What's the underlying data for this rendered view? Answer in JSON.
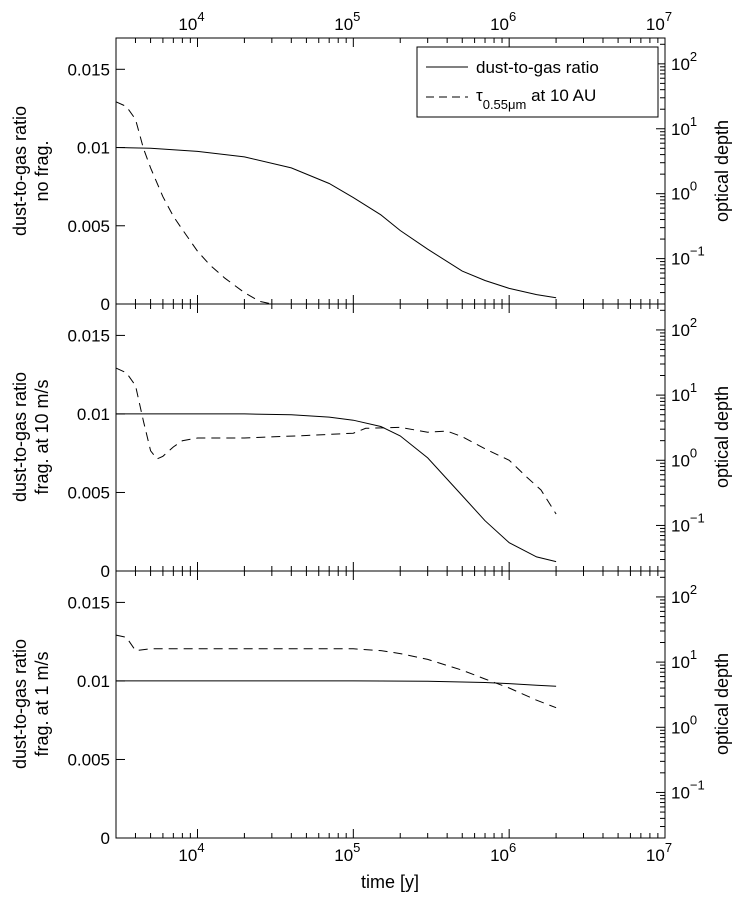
{
  "chart_data": {
    "type": "line",
    "xlabel": "time [y]",
    "xscale": "log",
    "xlim": [
      3000,
      10000000
    ],
    "x_tick_labels": [
      {
        "base": "10",
        "exp": "4",
        "value": 10000
      },
      {
        "base": "10",
        "exp": "5",
        "value": 100000
      },
      {
        "base": "10",
        "exp": "6",
        "value": 1000000
      },
      {
        "base": "10",
        "exp": "7",
        "value": 10000000
      }
    ],
    "left_ylim": [
      0,
      0.017
    ],
    "left_y_ticks": [
      {
        "label": "0",
        "value": 0
      },
      {
        "label": "0.005",
        "value": 0.005
      },
      {
        "label": "0.01",
        "value": 0.01
      },
      {
        "label": "0.015",
        "value": 0.015
      }
    ],
    "right_ylabel": "optical depth",
    "right_yscale": "log",
    "right_ylim": [
      0.02,
      250
    ],
    "right_y_ticks": [
      {
        "base": "10",
        "exp": "−1",
        "value": 0.1
      },
      {
        "base": "10",
        "exp": "0",
        "value": 1
      },
      {
        "base": "10",
        "exp": "1",
        "value": 10
      },
      {
        "base": "10",
        "exp": "2",
        "value": 100
      }
    ],
    "legend": {
      "placement": "top-right",
      "entries": [
        {
          "style": "solid",
          "label": "dust-to-gas ratio"
        },
        {
          "style": "dashed",
          "symbol": "τ",
          "subscript": "0.55μm",
          "suffix": " at 10 AU"
        }
      ]
    },
    "panels": [
      {
        "ylabel_line1": "dust-to-gas ratio",
        "ylabel_line2": "no frag.",
        "series": [
          {
            "name": "dust-to-gas ratio",
            "style": "solid",
            "axis": "left",
            "x": [
              3000,
              5000,
              10000,
              20000,
              40000,
              70000,
              100000,
              150000,
              200000,
              300000,
              500000,
              700000,
              1000000,
              1500000,
              2000000
            ],
            "y": [
              0.01,
              0.00995,
              0.00975,
              0.0094,
              0.0087,
              0.0077,
              0.0068,
              0.0057,
              0.0047,
              0.0035,
              0.0021,
              0.0015,
              0.001,
              0.0006,
              0.0004
            ]
          },
          {
            "name": "τ0.55μm at 10 AU",
            "style": "dashed",
            "axis": "right",
            "x": [
              3000,
              3500,
              4000,
              4500,
              5000,
              6000,
              7000,
              8000,
              10000,
              12000,
              15000,
              20000,
              25000,
              30000
            ],
            "y": [
              26,
              22,
              14,
              5,
              2.5,
              0.9,
              0.45,
              0.28,
              0.13,
              0.08,
              0.05,
              0.03,
              0.022,
              0.018
            ]
          }
        ]
      },
      {
        "ylabel_line1": "dust-to-gas ratio",
        "ylabel_line2": "frag. at 10 m/s",
        "series": [
          {
            "name": "dust-to-gas ratio",
            "style": "solid",
            "axis": "left",
            "x": [
              3000,
              5000,
              10000,
              20000,
              40000,
              70000,
              100000,
              150000,
              200000,
              300000,
              500000,
              700000,
              1000000,
              1500000,
              2000000
            ],
            "y": [
              0.01,
              0.01,
              0.01,
              0.01,
              0.00995,
              0.0098,
              0.0096,
              0.0092,
              0.0086,
              0.0072,
              0.0048,
              0.0032,
              0.0018,
              0.0009,
              0.0006
            ]
          },
          {
            "name": "τ0.55μm at 10 AU",
            "style": "dashed",
            "axis": "right",
            "x": [
              3000,
              3500,
              4000,
              4500,
              5000,
              5500,
              6000,
              7000,
              8000,
              10000,
              20000,
              50000,
              100000,
              120000,
              200000,
              300000,
              400000,
              500000,
              700000,
              1000000,
              1300000,
              1600000,
              2000000
            ],
            "y": [
              26,
              22,
              14,
              4,
              1.4,
              1.05,
              1.15,
              1.6,
              2.0,
              2.2,
              2.2,
              2.4,
              2.6,
              3.1,
              3.2,
              2.7,
              2.8,
              2.3,
              1.5,
              1.0,
              0.55,
              0.35,
              0.15
            ]
          }
        ]
      },
      {
        "ylabel_line1": "dust-to-gas ratio",
        "ylabel_line2": "frag. at 1 m/s",
        "series": [
          {
            "name": "dust-to-gas ratio",
            "style": "solid",
            "axis": "left",
            "x": [
              3000,
              10000,
              100000,
              300000,
              700000,
              1000000,
              1500000,
              2000000
            ],
            "y": [
              0.01,
              0.01,
              0.01,
              0.00998,
              0.0099,
              0.00983,
              0.00973,
              0.00966
            ]
          },
          {
            "name": "τ0.55μm at 10 AU",
            "style": "dashed",
            "axis": "right",
            "x": [
              3000,
              3500,
              4000,
              5000,
              10000,
              50000,
              100000,
              150000,
              200000,
              300000,
              500000,
              700000,
              1000000,
              1500000,
              2000000
            ],
            "y": [
              26,
              24,
              15,
              16,
              16,
              16,
              16,
              15,
              13.5,
              11,
              7.5,
              5.5,
              4,
              2.6,
              2.0
            ]
          }
        ]
      }
    ]
  }
}
